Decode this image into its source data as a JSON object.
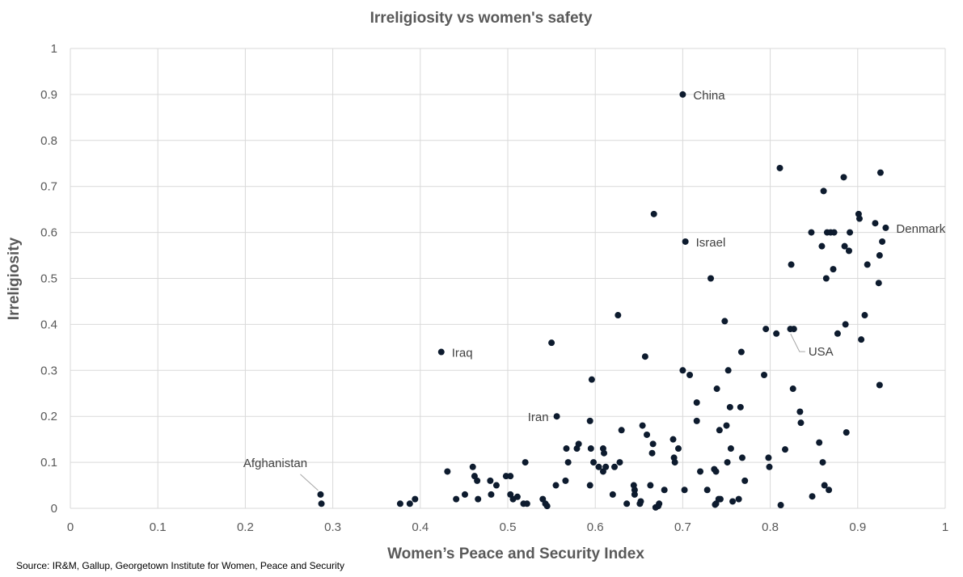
{
  "chart_data": {
    "type": "scatter",
    "title": "Irreligiosity vs women's safety",
    "xlabel": "Women’s Peace and Security Index",
    "ylabel": "Irreligiosity",
    "xlim": [
      0,
      1
    ],
    "ylim": [
      0,
      1
    ],
    "x_ticks": [
      "0",
      "0.1",
      "0.2",
      "0.3",
      "0.4",
      "0.5",
      "0.6",
      "0.7",
      "0.8",
      "0.9",
      "1"
    ],
    "y_ticks": [
      "0",
      "0.1",
      "0.2",
      "0.3",
      "0.4",
      "0.5",
      "0.6",
      "0.7",
      "0.8",
      "0.9",
      "1"
    ],
    "grid": true,
    "legend": "none",
    "marker_color": "#0d1b2e",
    "source": "Source: IR&M, Gallup, Georgetown Institute for Women, Peace and Security",
    "annotations": [
      {
        "label": "China",
        "x": 0.7,
        "y": 0.9,
        "anchor": "right"
      },
      {
        "label": "Israel",
        "x": 0.703,
        "y": 0.58,
        "anchor": "right"
      },
      {
        "label": "Denmark",
        "x": 0.932,
        "y": 0.61,
        "anchor": "right"
      },
      {
        "label": "Iraq",
        "x": 0.424,
        "y": 0.34,
        "anchor": "right"
      },
      {
        "label": "Iran",
        "x": 0.556,
        "y": 0.2,
        "anchor": "left"
      },
      {
        "label": "USA",
        "x": 0.827,
        "y": 0.39,
        "anchor": "leader-below"
      },
      {
        "label": "Afghanistan",
        "x": 0.286,
        "y": 0.03,
        "anchor": "leader-above"
      }
    ],
    "points": [
      [
        0.286,
        0.03
      ],
      [
        0.287,
        0.01
      ],
      [
        0.377,
        0.01
      ],
      [
        0.388,
        0.01
      ],
      [
        0.394,
        0.02
      ],
      [
        0.424,
        0.34
      ],
      [
        0.431,
        0.08
      ],
      [
        0.441,
        0.02
      ],
      [
        0.451,
        0.03
      ],
      [
        0.46,
        0.09
      ],
      [
        0.462,
        0.07
      ],
      [
        0.465,
        0.06
      ],
      [
        0.466,
        0.02
      ],
      [
        0.48,
        0.06
      ],
      [
        0.481,
        0.03
      ],
      [
        0.487,
        0.05
      ],
      [
        0.498,
        0.07
      ],
      [
        0.503,
        0.07
      ],
      [
        0.503,
        0.03
      ],
      [
        0.506,
        0.02
      ],
      [
        0.511,
        0.025
      ],
      [
        0.518,
        0.01
      ],
      [
        0.52,
        0.1
      ],
      [
        0.522,
        0.01
      ],
      [
        0.54,
        0.02
      ],
      [
        0.543,
        0.01
      ],
      [
        0.545,
        0.005
      ],
      [
        0.55,
        0.36
      ],
      [
        0.555,
        0.05
      ],
      [
        0.556,
        0.2
      ],
      [
        0.566,
        0.06
      ],
      [
        0.567,
        0.13
      ],
      [
        0.569,
        0.1
      ],
      [
        0.579,
        0.13
      ],
      [
        0.581,
        0.14
      ],
      [
        0.594,
        0.19
      ],
      [
        0.594,
        0.05
      ],
      [
        0.595,
        0.13
      ],
      [
        0.596,
        0.28
      ],
      [
        0.598,
        0.1
      ],
      [
        0.604,
        0.09
      ],
      [
        0.609,
        0.13
      ],
      [
        0.609,
        0.08
      ],
      [
        0.61,
        0.12
      ],
      [
        0.612,
        0.09
      ],
      [
        0.62,
        0.03
      ],
      [
        0.622,
        0.09
      ],
      [
        0.626,
        0.42
      ],
      [
        0.628,
        0.1
      ],
      [
        0.63,
        0.17
      ],
      [
        0.636,
        0.01
      ],
      [
        0.644,
        0.05
      ],
      [
        0.645,
        0.04
      ],
      [
        0.645,
        0.03
      ],
      [
        0.651,
        0.01
      ],
      [
        0.652,
        0.015
      ],
      [
        0.654,
        0.18
      ],
      [
        0.657,
        0.33
      ],
      [
        0.659,
        0.16
      ],
      [
        0.663,
        0.05
      ],
      [
        0.665,
        0.12
      ],
      [
        0.666,
        0.14
      ],
      [
        0.667,
        0.64
      ],
      [
        0.669,
        0.002
      ],
      [
        0.672,
        0.005
      ],
      [
        0.673,
        0.01
      ],
      [
        0.679,
        0.04
      ],
      [
        0.689,
        0.15
      ],
      [
        0.69,
        0.11
      ],
      [
        0.691,
        0.1
      ],
      [
        0.695,
        0.13
      ],
      [
        0.7,
        0.9
      ],
      [
        0.7,
        0.3
      ],
      [
        0.702,
        0.04
      ],
      [
        0.703,
        0.58
      ],
      [
        0.708,
        0.29
      ],
      [
        0.716,
        0.19
      ],
      [
        0.716,
        0.23
      ],
      [
        0.72,
        0.08
      ],
      [
        0.728,
        0.04
      ],
      [
        0.732,
        0.5
      ],
      [
        0.736,
        0.085
      ],
      [
        0.737,
        0.008
      ],
      [
        0.738,
        0.01
      ],
      [
        0.738,
        0.08
      ],
      [
        0.739,
        0.26
      ],
      [
        0.741,
        0.02
      ],
      [
        0.742,
        0.17
      ],
      [
        0.743,
        0.02
      ],
      [
        0.748,
        0.407
      ],
      [
        0.75,
        0.18
      ],
      [
        0.751,
        0.1
      ],
      [
        0.752,
        0.3
      ],
      [
        0.754,
        0.22
      ],
      [
        0.755,
        0.13
      ],
      [
        0.757,
        0.015
      ],
      [
        0.764,
        0.02
      ],
      [
        0.766,
        0.22
      ],
      [
        0.767,
        0.34
      ],
      [
        0.768,
        0.11
      ],
      [
        0.771,
        0.06
      ],
      [
        0.793,
        0.29
      ],
      [
        0.795,
        0.39
      ],
      [
        0.798,
        0.11
      ],
      [
        0.799,
        0.09
      ],
      [
        0.807,
        0.38
      ],
      [
        0.811,
        0.74
      ],
      [
        0.812,
        0.007
      ],
      [
        0.817,
        0.128
      ],
      [
        0.823,
        0.39
      ],
      [
        0.824,
        0.53
      ],
      [
        0.826,
        0.26
      ],
      [
        0.827,
        0.39
      ],
      [
        0.834,
        0.21
      ],
      [
        0.835,
        0.186
      ],
      [
        0.847,
        0.6
      ],
      [
        0.848,
        0.026
      ],
      [
        0.856,
        0.143
      ],
      [
        0.859,
        0.57
      ],
      [
        0.86,
        0.1
      ],
      [
        0.861,
        0.69
      ],
      [
        0.862,
        0.05
      ],
      [
        0.864,
        0.5
      ],
      [
        0.865,
        0.6
      ],
      [
        0.867,
        0.04
      ],
      [
        0.869,
        0.6
      ],
      [
        0.872,
        0.52
      ],
      [
        0.873,
        0.6
      ],
      [
        0.877,
        0.38
      ],
      [
        0.884,
        0.72
      ],
      [
        0.885,
        0.57
      ],
      [
        0.886,
        0.4
      ],
      [
        0.887,
        0.165
      ],
      [
        0.89,
        0.56
      ],
      [
        0.891,
        0.6
      ],
      [
        0.901,
        0.64
      ],
      [
        0.902,
        0.63
      ],
      [
        0.904,
        0.367
      ],
      [
        0.908,
        0.42
      ],
      [
        0.911,
        0.53
      ],
      [
        0.92,
        0.62
      ],
      [
        0.924,
        0.49
      ],
      [
        0.925,
        0.55
      ],
      [
        0.925,
        0.268
      ],
      [
        0.926,
        0.73
      ],
      [
        0.928,
        0.58
      ],
      [
        0.932,
        0.61
      ]
    ]
  }
}
